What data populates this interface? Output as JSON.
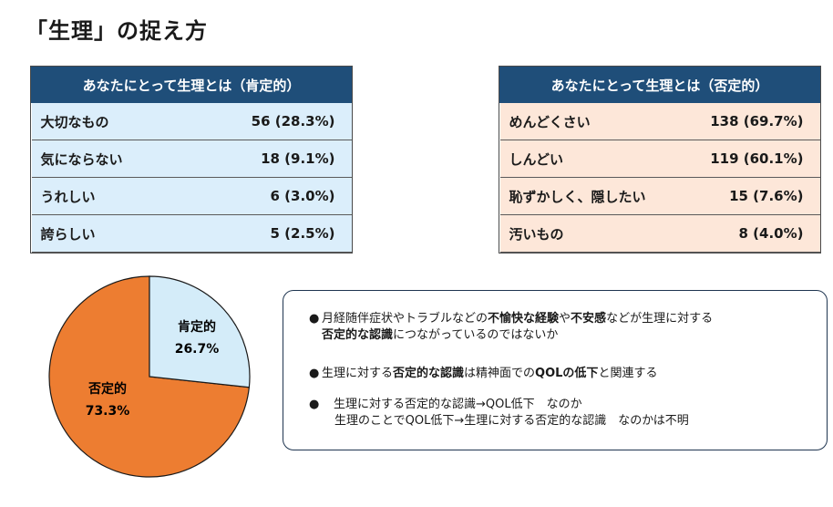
{
  "title": "「生理」の捉え方",
  "positive_table": {
    "header": "あなたにとって生理とは（肯定的）",
    "rows": [
      {
        "label": "大切なもの",
        "value": "56 (28.3%)"
      },
      {
        "label": "気にならない",
        "value": "18 (9.1%)"
      },
      {
        "label": "うれしい",
        "value": "6 (3.0%)"
      },
      {
        "label": "誇らしい",
        "value": "5 (2.5%)"
      }
    ]
  },
  "negative_table": {
    "header": "あなたにとって生理とは（否定的）",
    "rows": [
      {
        "label": "めんどくさい",
        "value": "138 (69.7%)"
      },
      {
        "label": "しんどい",
        "value": "119 (60.1%)"
      },
      {
        "label": "恥ずかしく、隠したい",
        "value": "15 (7.6%)"
      },
      {
        "label": "汚いもの",
        "value": "8 (4.0%)"
      }
    ]
  },
  "chart_data": {
    "type": "pie",
    "slices": [
      {
        "name": "肯定的",
        "value": 26.7,
        "label": "26.7%",
        "color": "#d4ecf9"
      },
      {
        "name": "否定的",
        "value": 73.3,
        "label": "73.3%",
        "color": "#ed7d31"
      }
    ]
  },
  "notes": {
    "bullet": "●",
    "n1_a": "月経随伴症状やトラブルなどの",
    "n1_b": "不愉快な経験",
    "n1_c": "や",
    "n1_d": "不安感",
    "n1_e": "などが生理に対する",
    "n1_f": "否定的な認識",
    "n1_g": "につながっているのではないか",
    "n2_a": "生理に対する",
    "n2_b": "否定的な認識",
    "n2_c": "は精神面での",
    "n2_d": "QOLの低下",
    "n2_e": "と関連する",
    "n3_a": "　生理に対する否定的な認識→QOL低下　なのか",
    "n3_b": "生理のことでQOL低下→生理に対する否定的な認識　なのかは不明"
  }
}
